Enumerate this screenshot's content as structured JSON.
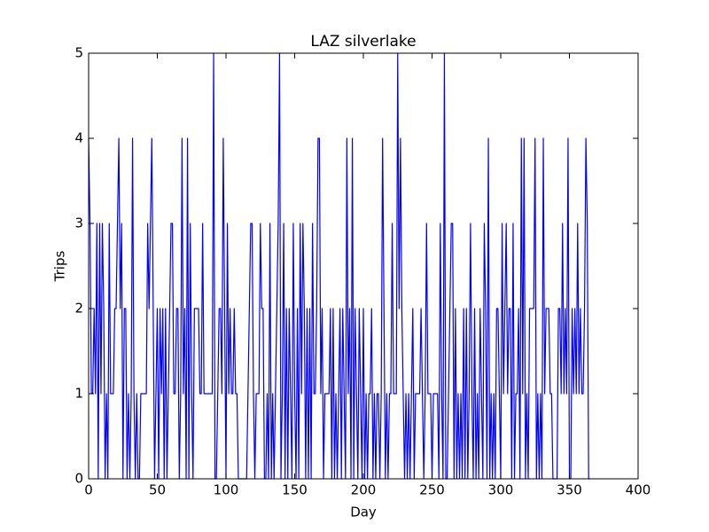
{
  "chart_data": {
    "type": "line",
    "title": "LAZ silverlake",
    "x_label": "Day",
    "y_label": "Trips",
    "color": "#0000ff",
    "xlim": [
      0,
      400
    ],
    "xticks": [
      0,
      50,
      100,
      150,
      200,
      250,
      300,
      350,
      400
    ],
    "ylim": [
      0,
      5
    ],
    "yticks": [
      0,
      1,
      2,
      3,
      4,
      5
    ],
    "x": [
      0,
      1,
      2,
      3,
      4,
      5,
      6,
      7,
      8,
      9,
      10,
      11,
      12,
      13,
      14,
      15,
      16,
      17,
      18,
      19,
      20,
      21,
      22,
      23,
      24,
      25,
      26,
      27,
      28,
      29,
      30,
      31,
      32,
      33,
      34,
      35,
      36,
      37,
      38,
      39,
      40,
      41,
      42,
      43,
      44,
      45,
      46,
      47,
      48,
      49,
      50,
      51,
      52,
      53,
      54,
      55,
      56,
      57,
      58,
      59,
      60,
      61,
      62,
      63,
      64,
      65,
      66,
      67,
      68,
      69,
      70,
      71,
      72,
      73,
      74,
      75,
      76,
      77,
      78,
      79,
      80,
      81,
      82,
      83,
      84,
      85,
      86,
      87,
      88,
      89,
      90,
      91,
      92,
      93,
      94,
      95,
      96,
      97,
      98,
      99,
      100,
      101,
      102,
      103,
      104,
      105,
      106,
      107,
      108,
      109,
      110,
      111,
      112,
      113,
      114,
      115,
      116,
      117,
      118,
      119,
      120,
      121,
      122,
      123,
      124,
      125,
      126,
      127,
      128,
      129,
      130,
      131,
      132,
      133,
      134,
      135,
      136,
      137,
      138,
      139,
      140,
      141,
      142,
      143,
      144,
      145,
      146,
      147,
      148,
      149,
      150,
      151,
      152,
      153,
      154,
      155,
      156,
      157,
      158,
      159,
      160,
      161,
      162,
      163,
      164,
      165,
      166,
      167,
      168,
      169,
      170,
      171,
      172,
      173,
      174,
      175,
      176,
      177,
      178,
      179,
      180,
      181,
      182,
      183,
      184,
      185,
      186,
      187,
      188,
      189,
      190,
      191,
      192,
      193,
      194,
      195,
      196,
      197,
      198,
      199,
      200,
      201,
      202,
      203,
      204,
      205,
      206,
      207,
      208,
      209,
      210,
      211,
      212,
      213,
      214,
      215,
      216,
      217,
      218,
      219,
      220,
      221,
      222,
      223,
      224,
      225,
      226,
      227,
      228,
      229,
      230,
      231,
      232,
      233,
      234,
      235,
      236,
      237,
      238,
      239,
      240,
      241,
      242,
      243,
      244,
      245,
      246,
      247,
      248,
      249,
      250,
      251,
      252,
      253,
      254,
      255,
      256,
      257,
      258,
      259,
      260,
      261,
      262,
      263,
      264,
      265,
      266,
      267,
      268,
      269,
      270,
      271,
      272,
      273,
      274,
      275,
      276,
      277,
      278,
      279,
      280,
      281,
      282,
      283,
      284,
      285,
      286,
      287,
      288,
      289,
      290,
      291,
      292,
      293,
      294,
      295,
      296,
      297,
      298,
      299,
      300,
      301,
      302,
      303,
      304,
      305,
      306,
      307,
      308,
      309,
      310,
      311,
      312,
      313,
      314,
      315,
      316,
      317,
      318,
      319,
      320,
      321,
      322,
      323,
      324,
      325,
      326,
      327,
      328,
      329,
      330,
      331,
      332,
      333,
      334,
      335,
      336,
      337,
      338,
      339,
      340,
      341,
      342,
      343,
      344,
      345,
      346,
      347,
      348,
      349,
      350,
      351,
      352,
      353,
      354,
      355,
      356,
      357,
      358,
      359,
      360,
      361,
      362,
      363,
      364,
      365
    ],
    "values": [
      4,
      3,
      1,
      1,
      2,
      1,
      3,
      0,
      3,
      1,
      3,
      2,
      0,
      1,
      0,
      3,
      1,
      1,
      1,
      2,
      2,
      3,
      4,
      2,
      3,
      0,
      2,
      2,
      0,
      1,
      0,
      1,
      4,
      1,
      0,
      1,
      0,
      0,
      1,
      1,
      1,
      1,
      1,
      3,
      2,
      3,
      4,
      2,
      0,
      1,
      2,
      0,
      2,
      1,
      2,
      0,
      2,
      0,
      1,
      2,
      3,
      3,
      1,
      1,
      2,
      2,
      0,
      1,
      4,
      1,
      2,
      0,
      4,
      0,
      3,
      1,
      0,
      2,
      2,
      2,
      2,
      1,
      1,
      3,
      1,
      1,
      1,
      1,
      1,
      1,
      1,
      5,
      0,
      0,
      1,
      2,
      2,
      1,
      4,
      2,
      0,
      3,
      1,
      2,
      1,
      1,
      2,
      1,
      1,
      0,
      0,
      0,
      0,
      0,
      0,
      0,
      1,
      2,
      3,
      3,
      1,
      0,
      1,
      1,
      1,
      3,
      2,
      2,
      0,
      0,
      1,
      0,
      3,
      0,
      1,
      0,
      1,
      2,
      3,
      5,
      0,
      1,
      3,
      0,
      2,
      0,
      2,
      1,
      0,
      3,
      1,
      0,
      2,
      0,
      3,
      1,
      3,
      2,
      0,
      2,
      0,
      2,
      0,
      3,
      1,
      1,
      2,
      4,
      4,
      1,
      2,
      0,
      1,
      1,
      1,
      1,
      2,
      0,
      2,
      0,
      1,
      0,
      1,
      2,
      0,
      2,
      1,
      0,
      4,
      1,
      2,
      0,
      4,
      0,
      2,
      1,
      0,
      2,
      1,
      0,
      2,
      0,
      1,
      0,
      1,
      1,
      2,
      0,
      1,
      0,
      1,
      1,
      0,
      1,
      4,
      2,
      0,
      1,
      0,
      1,
      1,
      3,
      1,
      1,
      1,
      5,
      2,
      4,
      2,
      1,
      0,
      1,
      0,
      1,
      0,
      1,
      2,
      0,
      1,
      1,
      1,
      1,
      2,
      1,
      0,
      1,
      3,
      1,
      1,
      1,
      0,
      1,
      1,
      1,
      1,
      0,
      3,
      1,
      0,
      5,
      0,
      0,
      1,
      2,
      3,
      3,
      0,
      2,
      0,
      1,
      0,
      1,
      0,
      2,
      0,
      2,
      0,
      1,
      3,
      1,
      0,
      2,
      0,
      1,
      0,
      2,
      1,
      0,
      3,
      2,
      0,
      4,
      0,
      1,
      0,
      1,
      0,
      2,
      2,
      1,
      0,
      3,
      1,
      2,
      3,
      1,
      2,
      2,
      0,
      3,
      0,
      1,
      1,
      2,
      0,
      4,
      1,
      4,
      0,
      1,
      0,
      2,
      2,
      2,
      2,
      4,
      0,
      1,
      0,
      1,
      0,
      4,
      1,
      2,
      2,
      2,
      1,
      1,
      0,
      0,
      0,
      0,
      2,
      2,
      1,
      3,
      1,
      2,
      1,
      4,
      0,
      0,
      2,
      1,
      2,
      1,
      3,
      1,
      2,
      1,
      1,
      2,
      4,
      3,
      0,
      0
    ]
  }
}
